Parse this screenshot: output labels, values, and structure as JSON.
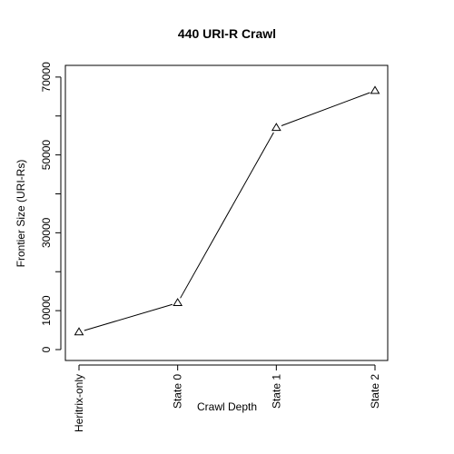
{
  "chart_data": {
    "type": "line",
    "title": "440 URI-R Crawl",
    "xlabel": "Crawl Depth",
    "ylabel": "Frontier Size (URI-Rs)",
    "categories": [
      "Heritrix-only",
      "State 0",
      "State 1",
      "State 2"
    ],
    "series": [
      {
        "values": [
          4500,
          12000,
          57000,
          66500
        ],
        "marker": "open-triangle",
        "color": "#000000"
      }
    ],
    "ylim": [
      -2800,
      73000
    ],
    "yticks": [
      0,
      10000,
      30000,
      50000,
      70000
    ],
    "ytick_marks": [
      0,
      10000,
      20000,
      30000,
      40000,
      50000,
      60000,
      70000
    ],
    "grid": false,
    "legend": "none",
    "colors": {
      "line": "#000000",
      "frame": "#000000",
      "background": "#ffffff"
    }
  }
}
